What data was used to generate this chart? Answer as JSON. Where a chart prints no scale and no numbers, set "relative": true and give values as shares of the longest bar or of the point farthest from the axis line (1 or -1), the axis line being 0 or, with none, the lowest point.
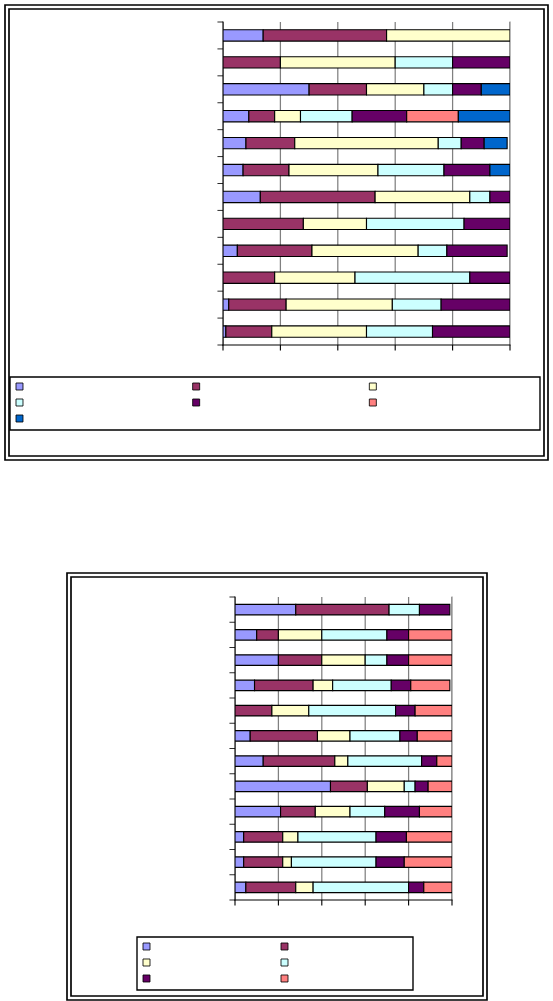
{
  "chart_data": [
    {
      "type": "bar",
      "orientation": "horizontal",
      "stacked": true,
      "relative": true,
      "grid": "x",
      "categories": [
        null,
        null,
        null,
        null,
        null,
        null,
        null,
        null,
        null,
        null,
        null,
        null
      ],
      "series": [
        {
          "color": "#9999ff",
          "values": [
            0.14,
            null,
            0.3,
            0.09,
            0.08,
            0.07,
            0.13,
            null,
            0.05,
            null,
            0.02,
            0.01
          ]
        },
        {
          "color": "#993366",
          "values": [
            0.43,
            0.2,
            0.2,
            0.09,
            0.17,
            0.16,
            0.4,
            0.28,
            0.26,
            0.18,
            0.2,
            0.16
          ]
        },
        {
          "color": "#ffffcc",
          "values": [
            0.43,
            0.4,
            0.2,
            0.09,
            0.5,
            0.31,
            0.33,
            0.22,
            0.37,
            0.28,
            0.37,
            0.33
          ]
        },
        {
          "color": "#ccffff",
          "values": [
            null,
            0.2,
            0.1,
            0.18,
            0.08,
            0.23,
            0.07,
            0.34,
            0.1,
            0.4,
            0.17,
            0.23
          ]
        },
        {
          "color": "#660066",
          "values": [
            null,
            0.2,
            0.1,
            0.19,
            0.08,
            0.16,
            0.07,
            0.16,
            0.21,
            0.14,
            0.24,
            0.27
          ]
        },
        {
          "color": "#ff8080",
          "values": [
            null,
            null,
            null,
            0.18,
            null,
            null,
            null,
            null,
            null,
            null,
            null,
            null
          ]
        },
        {
          "color": "#0066cc",
          "values": [
            null,
            null,
            0.1,
            0.18,
            0.08,
            0.07,
            null,
            null,
            null,
            null,
            null,
            null
          ]
        }
      ]
    },
    {
      "type": "bar",
      "orientation": "horizontal",
      "stacked": true,
      "relative": true,
      "grid": "x",
      "categories": [
        null,
        null,
        null,
        null,
        null,
        null,
        null,
        null,
        null,
        null,
        null,
        null
      ],
      "series": [
        {
          "color": "#9999ff",
          "values": [
            0.28,
            0.1,
            0.2,
            0.09,
            null,
            0.07,
            0.13,
            0.44,
            0.21,
            0.04,
            0.04,
            0.05
          ]
        },
        {
          "color": "#993366",
          "values": [
            0.43,
            0.1,
            0.2,
            0.27,
            0.17,
            0.31,
            0.33,
            0.17,
            0.16,
            0.18,
            0.18,
            0.23
          ]
        },
        {
          "color": "#ffffcc",
          "values": [
            null,
            0.2,
            0.2,
            0.09,
            0.17,
            0.15,
            0.06,
            0.17,
            0.16,
            0.07,
            0.04,
            0.08
          ]
        },
        {
          "color": "#ccffff",
          "values": [
            0.14,
            0.3,
            0.1,
            0.27,
            0.4,
            0.23,
            0.34,
            0.05,
            0.16,
            0.36,
            0.39,
            0.44
          ]
        },
        {
          "color": "#660066",
          "values": [
            0.14,
            0.1,
            0.1,
            0.09,
            0.09,
            0.08,
            0.07,
            0.06,
            0.16,
            0.14,
            0.13,
            0.07
          ]
        },
        {
          "color": "#ff8080",
          "values": [
            null,
            0.2,
            0.2,
            0.18,
            0.17,
            0.16,
            0.07,
            0.11,
            0.15,
            0.21,
            0.22,
            0.13
          ]
        }
      ]
    }
  ]
}
